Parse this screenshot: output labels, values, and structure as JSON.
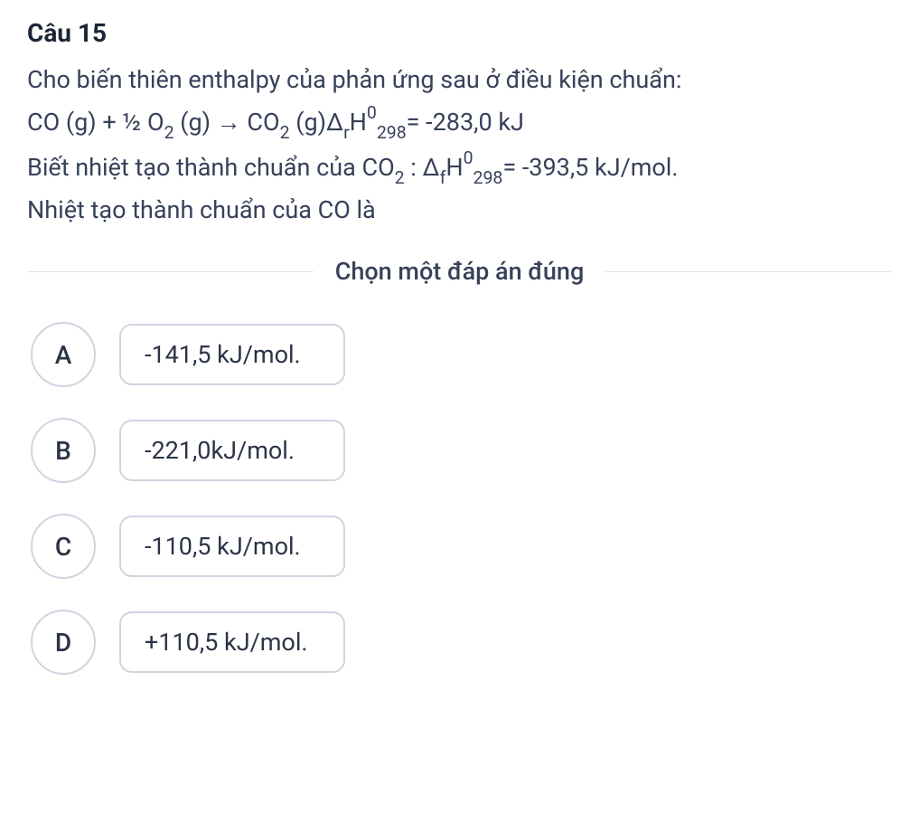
{
  "question": {
    "number_label": "Câu 15",
    "line1_pre": "Cho biến thiên enthalpy của phản ứng sau ở điều kiện chuẩn:",
    "eq": {
      "t1": "CO (g) + ½ O",
      "sub1": "2",
      "t2": " (g) → CO",
      "sub2": "2",
      "t3": " (g)Δ",
      "sub3": "r",
      "t4": "H",
      "sup1": "0",
      "sub4": "298",
      "t5": "= -283,0 kJ"
    },
    "line3": {
      "t1": "Biết nhiệt tạo thành chuẩn của CO",
      "sub1": "2",
      "t2": " : Δ",
      "sub2": "f",
      "t3": "H",
      "sup1": "0",
      "sub3": "298",
      "t4": "= -393,5 kJ/mol."
    },
    "line4": "Nhiệt tạo thành chuẩn của CO là"
  },
  "divider_label": "Chọn một đáp án đúng",
  "options": [
    {
      "letter": "A",
      "text": "-141,5 kJ/mol."
    },
    {
      "letter": "B",
      "text": "-221,0kJ/mol."
    },
    {
      "letter": "C",
      "text": "-110,5 kJ/mol."
    },
    {
      "letter": "D",
      "text": "+110,5 kJ/mol."
    }
  ],
  "colors": {
    "text_primary": "#1c2536",
    "text_body": "#37415a",
    "border": "#cfd6e2",
    "divider": "#e1e4ea",
    "background": "#ffffff"
  }
}
